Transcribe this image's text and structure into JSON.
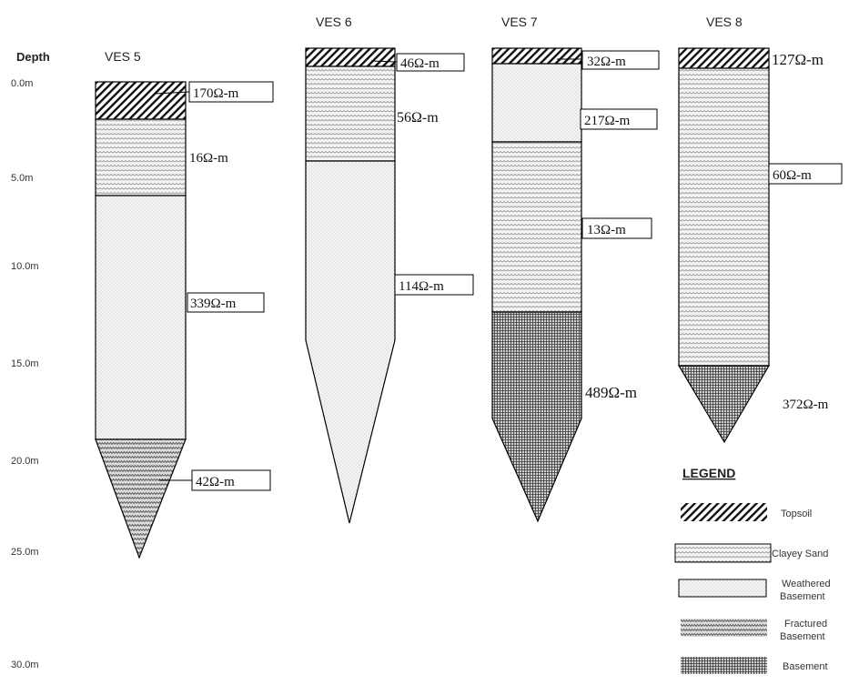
{
  "depth_axis": {
    "title": "Depth",
    "ticks": [
      "0.0m",
      "5.0m",
      "10.0m",
      "15.0m",
      "20.0m",
      "25.0m",
      "30.0m"
    ]
  },
  "columns": [
    {
      "title": "VES 5",
      "layers": [
        {
          "type": "topsoil",
          "label": "170Ω-m"
        },
        {
          "type": "clayey_sand",
          "label": "16Ω-m"
        },
        {
          "type": "weathered_basement",
          "label": "339Ω-m"
        },
        {
          "type": "fractured_basement",
          "label": "42Ω-m"
        }
      ]
    },
    {
      "title": "VES 6",
      "layers": [
        {
          "type": "topsoil",
          "label": "46Ω-m"
        },
        {
          "type": "clayey_sand",
          "label": "56Ω-m"
        },
        {
          "type": "weathered_basement",
          "label": "114Ω-m"
        }
      ]
    },
    {
      "title": "VES 7",
      "layers": [
        {
          "type": "topsoil",
          "label": "32Ω-m"
        },
        {
          "type": "weathered_basement",
          "label": "217Ω-m"
        },
        {
          "type": "clayey_sand",
          "label": "13Ω-m"
        },
        {
          "type": "basement",
          "label": "489Ω-m"
        }
      ]
    },
    {
      "title": "VES 8",
      "layers": [
        {
          "type": "topsoil",
          "label": "127Ω-m"
        },
        {
          "type": "clayey_sand",
          "label": "60Ω-m"
        },
        {
          "type": "basement",
          "label": "372Ω-m"
        }
      ]
    }
  ],
  "legend": {
    "title": "LEGEND",
    "items": [
      {
        "type": "topsoil",
        "label": "Topsoil"
      },
      {
        "type": "clayey_sand",
        "label": "Clayey Sand"
      },
      {
        "type": "weathered_basement",
        "label": "Weathered Basement"
      },
      {
        "type": "fractured_basement",
        "label": "Fractured Basement"
      },
      {
        "type": "basement",
        "label": "Basement"
      }
    ]
  }
}
